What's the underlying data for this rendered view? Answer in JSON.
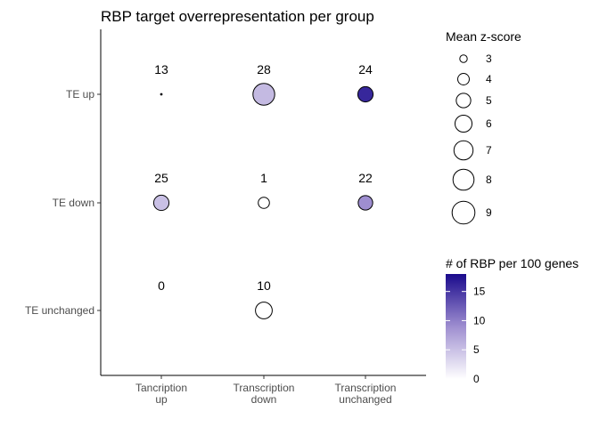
{
  "chart_data": {
    "type": "scatter",
    "title": "RBP target overrepresentation per group",
    "x_categories": [
      [
        "Tancription",
        "up"
      ],
      [
        "Transcription",
        "down"
      ],
      [
        "Transcription",
        "unchanged"
      ]
    ],
    "y_categories": [
      "TE up",
      "TE down",
      "TE unchanged"
    ],
    "points": [
      {
        "x": 0,
        "y": 0,
        "count": 13,
        "rbp_per_100": 17.5,
        "mean_z": 2.0
      },
      {
        "x": 1,
        "y": 0,
        "count": 28,
        "rbp_per_100": 5.5,
        "mean_z": 8.4
      },
      {
        "x": 2,
        "y": 0,
        "count": 24,
        "rbp_per_100": 16,
        "mean_z": 5.3
      },
      {
        "x": 0,
        "y": 1,
        "count": 25,
        "rbp_per_100": 5,
        "mean_z": 5.3
      },
      {
        "x": 1,
        "y": 1,
        "count": 1,
        "rbp_per_100": 0,
        "mean_z": 3.9
      },
      {
        "x": 2,
        "y": 1,
        "count": 22,
        "rbp_per_100": 9,
        "mean_z": 5.0
      },
      {
        "x": 0,
        "y": 2,
        "count": 0
      },
      {
        "x": 1,
        "y": 2,
        "count": 10,
        "rbp_per_100": 0,
        "mean_z": 5.9
      }
    ],
    "size_legend": {
      "title": "Mean z-score",
      "values": [
        3,
        4,
        5,
        6,
        7,
        8,
        9
      ]
    },
    "color_legend": {
      "title": "# of RBP per 100 genes",
      "ticks": [
        0,
        5,
        10,
        15
      ],
      "range": [
        0,
        18
      ],
      "low_color": "#ffffff",
      "high_color": "#1a0a8c"
    },
    "grid": false,
    "legend_position": "right"
  }
}
